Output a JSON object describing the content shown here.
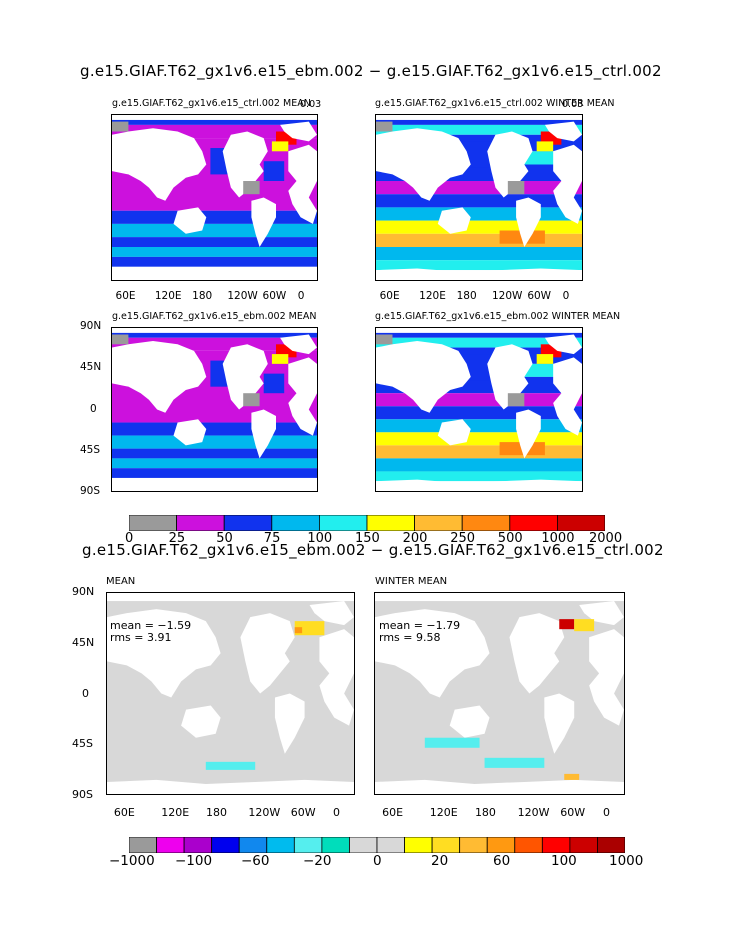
{
  "top": {
    "title": "g.e15.GIAF.T62_gx1v6.e15_ebm.002 − g.e15.GIAF.T62_gx1v6.e15_ctrl.002",
    "panels": [
      {
        "title": "g.e15.GIAF.T62_gx1v6.e15_ctrl.002 MEAN",
        "corner": "0.03"
      },
      {
        "title": "g.e15.GIAF.T62_gx1v6.e15_ctrl.002 WINTER MEAN",
        "corner": "0.03"
      },
      {
        "title": "g.e15.GIAF.T62_gx1v6.e15_ebm.002 MEAN",
        "corner": ""
      },
      {
        "title": "g.e15.GIAF.T62_gx1v6.e15_ebm.002 WINTER MEAN",
        "corner": ""
      }
    ],
    "colorbar": {
      "colors": [
        "#9a9a9a",
        "#cc11dd",
        "#1133ee",
        "#00b8ee",
        "#22eeee",
        "#ffff00",
        "#ffbb33",
        "#ff8811",
        "#ff0000",
        "#cc0000"
      ],
      "labels": [
        "0",
        "25",
        "50",
        "75",
        "100",
        "150",
        "200",
        "250",
        "500",
        "1000",
        "2000"
      ]
    }
  },
  "bottom": {
    "title": "g.e15.GIAF.T62_gx1v6.e15_ebm.002 − g.e15.GIAF.T62_gx1v6.e15_ctrl.002",
    "panels": [
      {
        "title": "MEAN",
        "mean": "mean = −1.59",
        "rms": "rms = 3.91"
      },
      {
        "title": "WINTER MEAN",
        "mean": "mean = −1.79",
        "rms": "rms = 9.58"
      }
    ],
    "colorbar": {
      "colors": [
        "#9a9a9a",
        "#ee00ee",
        "#aa00cc",
        "#0000ee",
        "#1188ee",
        "#00bbee",
        "#55eeee",
        "#00ddbb",
        "#d8d8d8",
        "#d8d8d8",
        "#ffff00",
        "#ffdd22",
        "#ffbb33",
        "#ff9911",
        "#ff5500",
        "#ff0000",
        "#cc0000",
        "#aa0000"
      ],
      "labels": [
        "−1000",
        "−100",
        "−60",
        "−20",
        "0",
        "20",
        "60",
        "100",
        "1000"
      ]
    }
  },
  "axes": {
    "lon_labels": [
      "60E",
      "120E",
      "180",
      "120W",
      "60W",
      "0"
    ],
    "lat_labels": [
      "90N",
      "45N",
      "0",
      "45S",
      "90S"
    ]
  },
  "chart_data": {
    "type": "heatmap",
    "title": "g.e15.GIAF.T62_gx1v6.e15_ebm.002 − g.e15.GIAF.T62_gx1v6.e15_ctrl.002",
    "xlabel": "",
    "ylabel": "",
    "x_ticks": [
      "60E",
      "120E",
      "180",
      "120W",
      "60W",
      "0"
    ],
    "y_ticks": [
      "90N",
      "45N",
      "0",
      "45S",
      "90S"
    ],
    "top_levels": [
      0,
      25,
      50,
      75,
      100,
      150,
      200,
      250,
      500,
      1000,
      2000
    ],
    "bottom_levels": [
      -1000,
      -100,
      -60,
      -20,
      0,
      20,
      60,
      100,
      1000
    ],
    "diff_stats": [
      {
        "panel": "MEAN",
        "mean": -1.59,
        "rms": 3.91
      },
      {
        "panel": "WINTER MEAN",
        "mean": -1.79,
        "rms": 9.58
      }
    ]
  }
}
